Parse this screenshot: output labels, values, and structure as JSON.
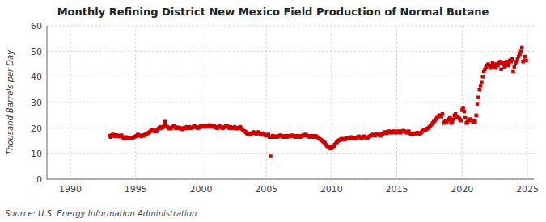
{
  "chart_data": {
    "type": "scatter",
    "title": "Monthly Refining District New Mexico Field Production of Normal Butane",
    "ylabel": "Thousand Barrels per Day",
    "source": "Source: U.S. Energy Information Administration",
    "color": "#cc0000",
    "marker": "square",
    "grid": true,
    "xlim": [
      1988.2,
      2025.5
    ],
    "xticks": [
      1990,
      1995,
      2000,
      2005,
      2010,
      2015,
      2020,
      2025
    ],
    "ylim": [
      0,
      60
    ],
    "yticks": [
      0,
      10,
      20,
      30,
      40,
      50,
      60
    ],
    "x": [
      1993.0,
      1993.083,
      1993.167,
      1993.25,
      1993.333,
      1993.417,
      1993.5,
      1993.583,
      1993.667,
      1993.75,
      1993.833,
      1993.917,
      1994.0,
      1994.083,
      1994.167,
      1994.25,
      1994.333,
      1994.417,
      1994.5,
      1994.583,
      1994.667,
      1994.75,
      1994.833,
      1994.917,
      1995.0,
      1995.083,
      1995.167,
      1995.25,
      1995.333,
      1995.417,
      1995.5,
      1995.583,
      1995.667,
      1995.75,
      1995.833,
      1995.917,
      1996.0,
      1996.083,
      1996.167,
      1996.25,
      1996.333,
      1996.417,
      1996.5,
      1996.583,
      1996.667,
      1996.75,
      1996.833,
      1996.917,
      1997.0,
      1997.083,
      1997.167,
      1997.25,
      1997.333,
      1997.417,
      1997.5,
      1997.583,
      1997.667,
      1997.75,
      1997.833,
      1997.917,
      1998.0,
      1998.083,
      1998.167,
      1998.25,
      1998.333,
      1998.417,
      1998.5,
      1998.583,
      1998.667,
      1998.75,
      1998.833,
      1998.917,
      1999.0,
      1999.083,
      1999.167,
      1999.25,
      1999.333,
      1999.417,
      1999.5,
      1999.583,
      1999.667,
      1999.75,
      1999.833,
      1999.917,
      2000.0,
      2000.083,
      2000.167,
      2000.25,
      2000.333,
      2000.417,
      2000.5,
      2000.583,
      2000.667,
      2000.75,
      2000.833,
      2000.917,
      2001.0,
      2001.083,
      2001.167,
      2001.25,
      2001.333,
      2001.417,
      2001.5,
      2001.583,
      2001.667,
      2001.75,
      2001.833,
      2001.917,
      2002.0,
      2002.083,
      2002.167,
      2002.25,
      2002.333,
      2002.417,
      2002.5,
      2002.583,
      2002.667,
      2002.75,
      2002.833,
      2002.917,
      2003.0,
      2003.083,
      2003.167,
      2003.25,
      2003.333,
      2003.417,
      2003.5,
      2003.583,
      2003.667,
      2003.75,
      2003.833,
      2003.917,
      2004.0,
      2004.083,
      2004.167,
      2004.25,
      2004.333,
      2004.417,
      2004.5,
      2004.583,
      2004.667,
      2004.75,
      2004.833,
      2004.917,
      2005.0,
      2005.083,
      2005.167,
      2005.25,
      2005.333,
      2005.417,
      2005.5,
      2005.583,
      2005.667,
      2005.75,
      2005.833,
      2005.917,
      2006.0,
      2006.083,
      2006.167,
      2006.25,
      2006.333,
      2006.417,
      2006.5,
      2006.583,
      2006.667,
      2006.75,
      2006.833,
      2006.917,
      2007.0,
      2007.083,
      2007.167,
      2007.25,
      2007.333,
      2007.417,
      2007.5,
      2007.583,
      2007.667,
      2007.75,
      2007.833,
      2007.917,
      2008.0,
      2008.083,
      2008.167,
      2008.25,
      2008.333,
      2008.417,
      2008.5,
      2008.583,
      2008.667,
      2008.75,
      2008.833,
      2008.917,
      2009.0,
      2009.083,
      2009.167,
      2009.25,
      2009.333,
      2009.417,
      2009.5,
      2009.583,
      2009.667,
      2009.75,
      2009.833,
      2009.917,
      2010.0,
      2010.083,
      2010.167,
      2010.25,
      2010.333,
      2010.417,
      2010.5,
      2010.583,
      2010.667,
      2010.75,
      2010.833,
      2010.917,
      2011.0,
      2011.083,
      2011.167,
      2011.25,
      2011.333,
      2011.417,
      2011.5,
      2011.583,
      2011.667,
      2011.75,
      2011.833,
      2011.917,
      2012.0,
      2012.083,
      2012.167,
      2012.25,
      2012.333,
      2012.417,
      2012.5,
      2012.583,
      2012.667,
      2012.75,
      2012.833,
      2012.917,
      2013.0,
      2013.083,
      2013.167,
      2013.25,
      2013.333,
      2013.417,
      2013.5,
      2013.583,
      2013.667,
      2013.75,
      2013.833,
      2013.917,
      2014.0,
      2014.083,
      2014.167,
      2014.25,
      2014.333,
      2014.417,
      2014.5,
      2014.583,
      2014.667,
      2014.75,
      2014.833,
      2014.917,
      2015.0,
      2015.083,
      2015.167,
      2015.25,
      2015.333,
      2015.417,
      2015.5,
      2015.583,
      2015.667,
      2015.75,
      2015.833,
      2015.917,
      2016.0,
      2016.083,
      2016.167,
      2016.25,
      2016.333,
      2016.417,
      2016.5,
      2016.583,
      2016.667,
      2016.75,
      2016.833,
      2016.917,
      2017.0,
      2017.083,
      2017.167,
      2017.25,
      2017.333,
      2017.417,
      2017.5,
      2017.583,
      2017.667,
      2017.75,
      2017.833,
      2017.917,
      2018.0,
      2018.083,
      2018.167,
      2018.25,
      2018.333,
      2018.417,
      2018.5,
      2018.583,
      2018.667,
      2018.75,
      2018.833,
      2018.917,
      2019.0,
      2019.083,
      2019.167,
      2019.25,
      2019.333,
      2019.417,
      2019.5,
      2019.583,
      2019.667,
      2019.75,
      2019.833,
      2019.917,
      2020.0,
      2020.083,
      2020.167,
      2020.25,
      2020.333,
      2020.417,
      2020.5,
      2020.583,
      2020.667,
      2020.75,
      2020.833,
      2020.917,
      2021.0,
      2021.083,
      2021.167,
      2021.25,
      2021.333,
      2021.417,
      2021.5,
      2021.583,
      2021.667,
      2021.75,
      2021.833,
      2021.917,
      2022.0,
      2022.083,
      2022.167,
      2022.25,
      2022.333,
      2022.417,
      2022.5,
      2022.583,
      2022.667,
      2022.75,
      2022.833,
      2022.917,
      2023.0,
      2023.083,
      2023.167,
      2023.25,
      2023.333,
      2023.417,
      2023.5,
      2023.583,
      2023.667,
      2023.75,
      2023.833,
      2023.917,
      2024.0,
      2024.083,
      2024.167,
      2024.25,
      2024.333,
      2024.417,
      2024.5,
      2024.583,
      2024.667,
      2024.75,
      2024.833,
      2024.917
    ],
    "values": [
      17.0,
      16.5,
      17.2,
      17.5,
      17.0,
      16.8,
      17.3,
      16.9,
      17.1,
      16.7,
      17.0,
      17.2,
      16.5,
      15.8,
      16.0,
      16.5,
      16.2,
      16.0,
      15.9,
      16.3,
      16.1,
      16.0,
      16.4,
      16.6,
      16.8,
      17.0,
      17.5,
      17.2,
      17.0,
      16.8,
      17.1,
      17.3,
      17.0,
      17.5,
      17.8,
      18.0,
      18.2,
      18.5,
      19.0,
      19.5,
      19.2,
      18.8,
      19.0,
      18.7,
      19.2,
      19.8,
      20.2,
      20.5,
      20.0,
      20.3,
      21.0,
      22.5,
      21.0,
      20.5,
      20.0,
      20.2,
      19.8,
      20.1,
      20.5,
      20.8,
      20.5,
      20.0,
      20.3,
      20.0,
      20.2,
      19.8,
      20.0,
      19.5,
      19.8,
      20.2,
      20.0,
      20.5,
      20.0,
      20.5,
      20.2,
      20.0,
      20.3,
      20.5,
      20.8,
      20.5,
      20.2,
      20.0,
      20.3,
      20.5,
      20.8,
      21.0,
      20.5,
      20.8,
      21.0,
      20.7,
      20.5,
      20.8,
      21.2,
      20.8,
      20.5,
      20.7,
      21.0,
      20.5,
      20.2,
      20.0,
      20.5,
      20.8,
      20.5,
      20.2,
      20.0,
      20.3,
      20.5,
      20.8,
      21.0,
      20.5,
      20.0,
      20.5,
      20.2,
      20.0,
      20.2,
      20.5,
      20.0,
      19.8,
      20.0,
      20.2,
      20.5,
      20.0,
      19.5,
      19.0,
      18.8,
      18.5,
      18.0,
      17.8,
      18.0,
      17.5,
      17.8,
      18.0,
      18.5,
      18.2,
      18.0,
      17.8,
      18.0,
      18.5,
      18.0,
      17.5,
      18.0,
      17.8,
      17.5,
      17.2,
      17.0,
      17.3,
      17.5,
      16.5,
      9.0,
      16.5,
      17.0,
      16.8,
      16.5,
      16.8,
      16.5,
      16.8,
      17.0,
      17.2,
      17.0,
      16.8,
      16.5,
      16.8,
      17.0,
      16.5,
      16.8,
      17.0,
      16.8,
      17.0,
      17.2,
      17.0,
      16.8,
      16.5,
      16.8,
      17.0,
      16.8,
      16.5,
      16.8,
      17.0,
      17.2,
      17.0,
      17.5,
      17.2,
      17.0,
      16.8,
      16.5,
      16.8,
      17.0,
      16.5,
      16.8,
      17.0,
      16.8,
      16.5,
      16.0,
      15.8,
      15.5,
      15.2,
      14.8,
      14.5,
      14.2,
      13.5,
      13.0,
      12.8,
      12.5,
      12.0,
      12.2,
      12.5,
      13.0,
      13.5,
      14.0,
      14.5,
      15.0,
      15.2,
      15.5,
      15.8,
      15.5,
      15.8,
      15.5,
      15.8,
      16.0,
      15.8,
      16.0,
      16.2,
      16.5,
      16.2,
      16.0,
      15.8,
      16.0,
      16.2,
      16.5,
      16.8,
      16.5,
      16.2,
      16.0,
      16.5,
      16.8,
      16.5,
      16.2,
      16.0,
      16.5,
      16.8,
      17.0,
      17.2,
      17.5,
      17.2,
      17.0,
      17.5,
      17.8,
      17.5,
      17.2,
      17.0,
      17.5,
      17.8,
      18.0,
      18.5,
      18.2,
      18.0,
      18.5,
      18.8,
      18.5,
      18.2,
      18.5,
      18.8,
      18.5,
      18.2,
      18.5,
      18.8,
      18.5,
      18.2,
      18.5,
      18.8,
      19.0,
      18.8,
      18.5,
      18.2,
      18.5,
      18.8,
      18.0,
      17.8,
      17.5,
      17.8,
      18.0,
      17.8,
      18.0,
      18.2,
      18.0,
      17.8,
      18.0,
      18.5,
      19.0,
      19.5,
      19.2,
      19.5,
      19.8,
      20.0,
      20.5,
      21.0,
      21.5,
      22.0,
      22.5,
      23.0,
      23.5,
      24.0,
      24.5,
      25.0,
      25.0,
      24.5,
      25.5,
      22.0,
      22.5,
      23.0,
      22.5,
      23.0,
      23.5,
      24.0,
      22.0,
      22.5,
      23.5,
      25.0,
      25.5,
      24.0,
      24.5,
      24.0,
      23.5,
      23.0,
      27.0,
      28.0,
      26.5,
      24.0,
      22.0,
      22.5,
      23.0,
      23.5,
      23.2,
      23.0,
      22.5,
      23.0,
      22.5,
      25.0,
      29.5,
      32.0,
      35.0,
      36.5,
      38.0,
      40.0,
      42.0,
      43.0,
      44.0,
      44.5,
      45.0,
      44.5,
      43.5,
      44.0,
      45.5,
      45.0,
      44.0,
      43.5,
      45.0,
      44.5,
      45.5,
      46.0,
      43.0,
      45.5,
      45.0,
      44.0,
      45.5,
      46.0,
      44.5,
      45.0,
      46.5,
      46.0,
      47.0,
      42.0,
      44.0,
      45.5,
      46.0,
      47.0,
      48.0,
      49.0,
      50.0,
      51.5,
      46.0,
      46.5,
      48.0,
      46.5
    ]
  }
}
